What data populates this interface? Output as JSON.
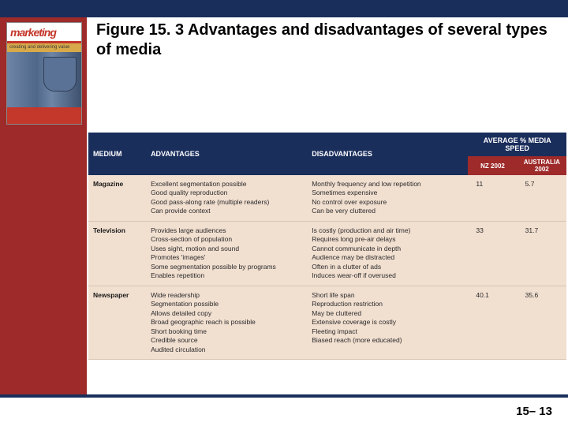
{
  "title": "Figure 15. 3 Advantages and disadvantages of several types of media",
  "page_number": "15– 13",
  "book": {
    "logo": "marketing",
    "subtitle": "creating and delivering value",
    "footer_lines": "—"
  },
  "table": {
    "headers": {
      "medium": "MEDIUM",
      "advantages": "ADVANTAGES",
      "disadvantages": "DISADVANTAGES",
      "speed": "AVERAGE % MEDIA SPEED",
      "nz": "NZ 2002",
      "aus": "AUSTRALIA 2002"
    },
    "rows": [
      {
        "medium": "Magazine",
        "advantages": "Excellent segmentation possible\nGood quality reproduction\nGood pass-along rate (multiple readers)\nCan provide context",
        "disadvantages": "Monthly frequency and low repetition\nSometimes expensive\nNo control over exposure\nCan be very cluttered",
        "nz": "11",
        "aus": "5.7"
      },
      {
        "medium": "Television",
        "advantages": "Provides large audiences\nCross-section of population\nUses sight, motion and sound\nPromotes 'images'\nSome segmentation possible by programs\nEnables repetition",
        "disadvantages": "Is costly (production and air time)\nRequires long pre-air delays\nCannot communicate in depth\nAudience may be distracted\nOften in a clutter of ads\nInduces wear-off if overused",
        "nz": "33",
        "aus": "31.7"
      },
      {
        "medium": "Newspaper",
        "advantages": "Wide readership\nSegmentation possible\nAllows detailed copy\nBroad geographic reach is possible\nShort booking time\nCredible source\nAudited circulation",
        "disadvantages": "Short life span\nReproduction restriction\nMay be cluttered\nExtensive coverage is costly\nFleeting impact\nBiased reach (more educated)",
        "nz": "40.1",
        "aus": "35.6"
      }
    ]
  }
}
